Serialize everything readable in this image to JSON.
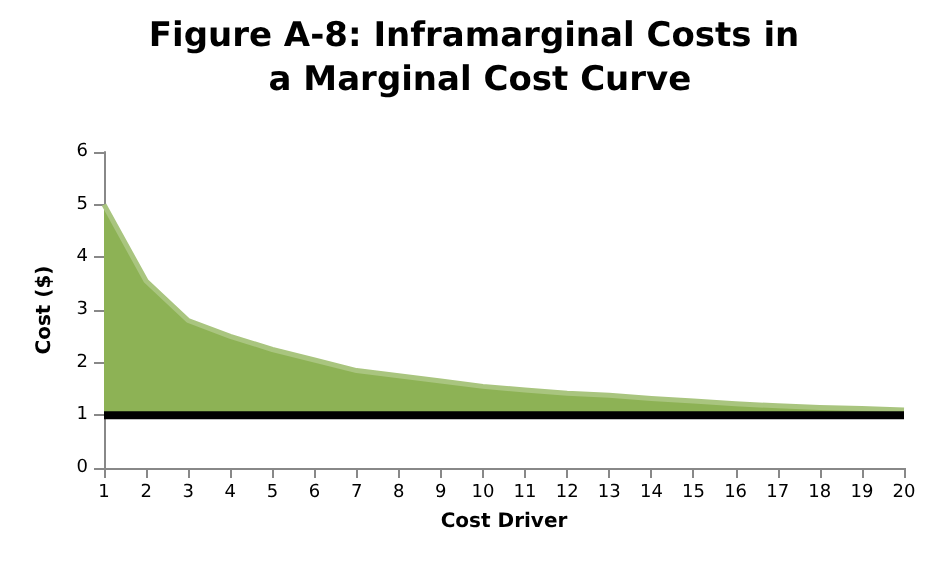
{
  "chart_data": {
    "type": "area",
    "title": "Figure A-8: Inframarginal Costs in a Marginal Cost Curve",
    "xlabel": "Cost Driver",
    "ylabel": "Cost ($)",
    "x": [
      1,
      2,
      3,
      4,
      5,
      6,
      7,
      8,
      9,
      10,
      11,
      12,
      13,
      14,
      15,
      16,
      17,
      18,
      19,
      20
    ],
    "series": [
      {
        "color": "#8db255",
        "values": [
          5,
          3.55,
          2.8,
          2.5,
          2.25,
          2.05,
          1.85,
          1.75,
          1.65,
          1.55,
          1.48,
          1.42,
          1.38,
          1.32,
          1.27,
          1.22,
          1.18,
          1.15,
          1.13,
          1.1
        ]
      },
      {
        "type": "line",
        "color": "#000000",
        "values": [
          1,
          1,
          1,
          1,
          1,
          1,
          1,
          1,
          1,
          1,
          1,
          1,
          1,
          1,
          1,
          1,
          1,
          1,
          1,
          1
        ]
      }
    ],
    "xlim": [
      1,
      20
    ],
    "xticks": [
      1,
      2,
      3,
      4,
      5,
      6,
      7,
      8,
      9,
      10,
      11,
      12,
      13,
      14,
      15,
      16,
      17,
      18,
      19,
      20
    ],
    "ylim": [
      0,
      6
    ],
    "yticks": [
      0,
      1,
      2,
      3,
      4,
      5,
      6
    ],
    "grid": false,
    "marker": "none"
  }
}
